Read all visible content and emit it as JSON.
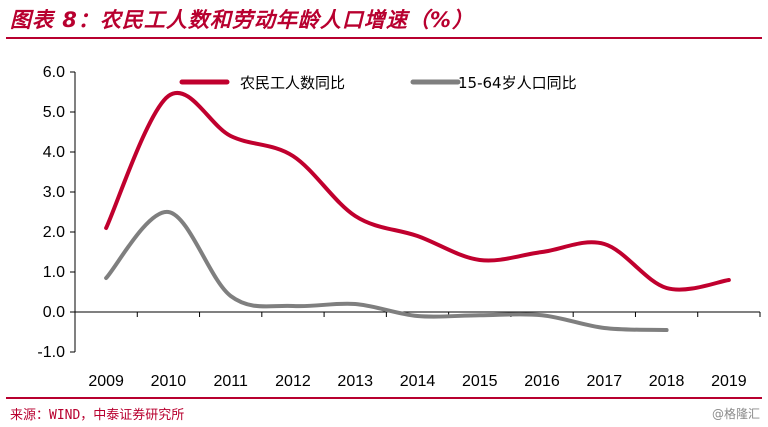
{
  "title": "图表 8：农民工人数和劳动年龄人口增速（%）",
  "source": "来源：WIND，中泰证券研究所",
  "watermark": "@格隆汇",
  "colors": {
    "accent": "#b8002f",
    "series1": "#c0002e",
    "series2": "#7f7f7f"
  },
  "chart_data": {
    "type": "line",
    "title": "",
    "xlabel": "",
    "ylabel": "",
    "x": [
      "2009",
      "2010",
      "2011",
      "2012",
      "2013",
      "2014",
      "2015",
      "2016",
      "2017",
      "2018",
      "2019"
    ],
    "ylim": [
      -1.0,
      6.0
    ],
    "yticks": [
      "6.0",
      "5.0",
      "4.0",
      "3.0",
      "2.0",
      "1.0",
      "0.0",
      "-1.0"
    ],
    "ytick_values": [
      6,
      5,
      4,
      3,
      2,
      1,
      0,
      -1
    ],
    "grid": false,
    "legend_position": "top",
    "smooth": true,
    "series": [
      {
        "name": "农民工人数同比",
        "color": "#c0002e",
        "values": [
          2.1,
          5.4,
          4.4,
          3.9,
          2.4,
          1.9,
          1.3,
          1.5,
          1.7,
          0.6,
          0.8
        ]
      },
      {
        "name": "15-64岁人口同比",
        "color": "#7f7f7f",
        "values": [
          0.85,
          2.5,
          0.4,
          0.15,
          0.2,
          -0.1,
          -0.08,
          -0.08,
          -0.4,
          -0.45,
          null
        ]
      }
    ]
  }
}
